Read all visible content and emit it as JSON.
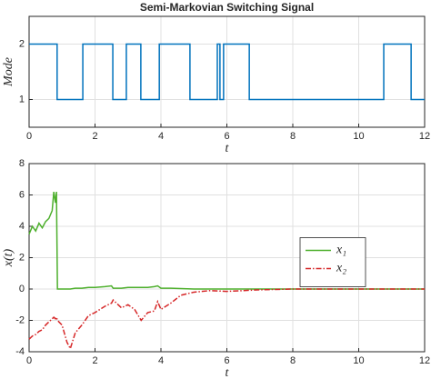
{
  "chart_data": [
    {
      "type": "line",
      "step": "post",
      "title": "Semi-Markovian Switching Signal",
      "xlabel": "t",
      "ylabel": "Mode",
      "x": [
        0,
        0.85,
        1.63,
        2.54,
        2.95,
        3.39,
        3.95,
        4.88,
        5.71,
        5.79,
        5.9,
        6.68,
        10.76,
        11.59,
        12
      ],
      "series": [
        {
          "color": "#0072bd",
          "values": [
            2,
            1,
            2,
            1,
            2,
            1,
            2,
            1,
            2,
            1,
            2,
            1,
            2,
            1,
            1
          ]
        }
      ],
      "xlim": [
        0,
        12
      ],
      "xticks": [
        0,
        2,
        4,
        6,
        8,
        10,
        12
      ],
      "ylim": [
        0.5,
        2.5
      ],
      "yticks": [
        1,
        2
      ],
      "grid": true
    },
    {
      "type": "line",
      "xlabel": "t",
      "ylabel": "x(t)",
      "legend": "east",
      "x": [
        0,
        0.1,
        0.2,
        0.3,
        0.4,
        0.5,
        0.6,
        0.7,
        0.75,
        0.8,
        0.83,
        0.86,
        1,
        1.15,
        1.25,
        1.4,
        1.6,
        1.8,
        2,
        2.3,
        2.5,
        2.55,
        2.8,
        3,
        3.2,
        3.4,
        3.6,
        3.8,
        3.9,
        4,
        4.3,
        4.6,
        5,
        5.5,
        6,
        7,
        8,
        12
      ],
      "series": [
        {
          "name": "x₁",
          "color": "#4daf2c",
          "dash": "solid",
          "values": [
            3.5,
            4,
            3.7,
            4.2,
            3.9,
            4.3,
            4.5,
            5,
            6.2,
            5.5,
            6.2,
            0,
            0,
            0,
            0,
            0.05,
            0.05,
            0.1,
            0.1,
            0.15,
            0.2,
            0.05,
            0.05,
            0.1,
            0.1,
            0.1,
            0.1,
            0.15,
            0.2,
            0.05,
            0.05,
            0.03,
            0,
            0,
            0,
            0,
            0,
            0
          ]
        },
        {
          "name": "x₂",
          "color": "#d62728",
          "dash": "dashdot",
          "values": [
            -3.2,
            -3,
            -2.9,
            -2.7,
            -2.6,
            -2.3,
            -2.1,
            -1.9,
            -1.8,
            -1.9,
            -1.8,
            -2,
            -2.3,
            -3.4,
            -3.8,
            -2.8,
            -2.3,
            -1.7,
            -1.5,
            -1.1,
            -0.9,
            -0.7,
            -1.2,
            -1,
            -1.3,
            -2,
            -1.5,
            -1.4,
            -0.8,
            -1.3,
            -0.9,
            -0.4,
            -0.2,
            -0.1,
            -0.15,
            -0.05,
            0,
            0
          ]
        }
      ],
      "xlim": [
        0,
        12
      ],
      "xticks": [
        0,
        2,
        4,
        6,
        8,
        10,
        12
      ],
      "ylim": [
        -4,
        8
      ],
      "yticks": [
        -4,
        -2,
        0,
        2,
        4,
        6,
        8
      ],
      "grid": true
    }
  ]
}
